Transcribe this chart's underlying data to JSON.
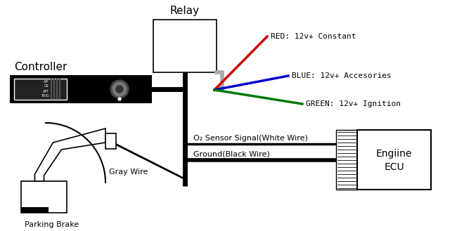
{
  "bg_color": "#ffffff",
  "relay_label": "Relay",
  "controller_label": "Controller",
  "ecu_label_line1": "Engiine",
  "ecu_label_line2": "ECU",
  "parking_label": "Parking Brake",
  "gray_wire_label": "Gray Wire",
  "o2_label": "O₂ Sensor Signal(White Wire)",
  "ground_label": "Ground(Black Wire)",
  "red_label": "RED: 12v+ Constant",
  "blue_label": "BLUE: 12v+ Accesories",
  "green_label": "GREEN: 12v+ Ignition",
  "red_color": "#cc0000",
  "blue_color": "#0000cc",
  "green_color": "#007700",
  "black_color": "#000000",
  "label_fontsize": 8,
  "header_fontsize": 11,
  "wire_label_color": "#000000"
}
